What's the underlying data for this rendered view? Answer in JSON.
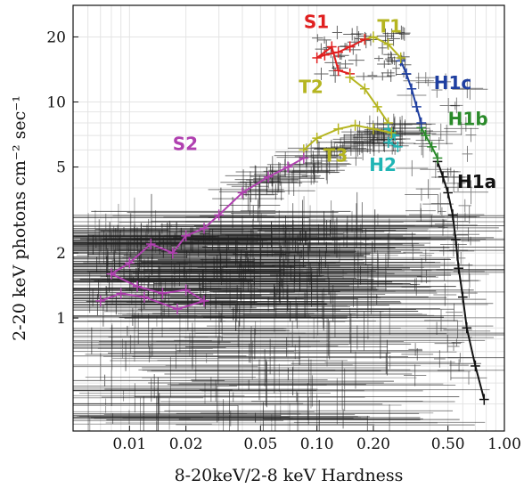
{
  "chart_data": {
    "type": "scatter",
    "xlabel": "8-20keV/2-8 keV Hardness",
    "ylabel": "2-20 keV photons cm⁻² sec⁻¹",
    "x_scale": "log",
    "y_scale": "log",
    "xlim": [
      0.005,
      1.0
    ],
    "ylim": [
      0.3,
      28
    ],
    "grid": true,
    "x_ticks": [
      {
        "value": 0.01,
        "label": "0.01"
      },
      {
        "value": 0.02,
        "label": "0.02"
      },
      {
        "value": 0.05,
        "label": "0.05"
      },
      {
        "value": 0.1,
        "label": "0.10"
      },
      {
        "value": 0.2,
        "label": "0.20"
      },
      {
        "value": 0.5,
        "label": "0.50"
      },
      {
        "value": 1.0,
        "label": "1.00"
      }
    ],
    "y_ticks": [
      {
        "value": 1,
        "label": "1"
      },
      {
        "value": 2,
        "label": "2"
      },
      {
        "value": 5,
        "label": "5"
      },
      {
        "value": 10,
        "label": "10"
      },
      {
        "value": 20,
        "label": "20"
      }
    ],
    "series": [
      {
        "name": "H1a",
        "color": "#111111",
        "points": [
          [
            0.78,
            0.42
          ],
          [
            0.7,
            0.6
          ],
          [
            0.63,
            0.9
          ],
          [
            0.6,
            1.25
          ],
          [
            0.57,
            1.7
          ],
          [
            0.55,
            2.3
          ],
          [
            0.53,
            3.0
          ],
          [
            0.5,
            3.8
          ],
          [
            0.47,
            4.5
          ],
          [
            0.44,
            5.3
          ]
        ],
        "label": "H1a",
        "label_at": [
          0.56,
          4.0
        ]
      },
      {
        "name": "H1b",
        "color": "#2a8a2a",
        "points": [
          [
            0.44,
            5.5
          ],
          [
            0.41,
            6.2
          ],
          [
            0.38,
            7.0
          ],
          [
            0.36,
            7.6
          ]
        ],
        "label": "H1b",
        "label_at": [
          0.5,
          7.8
        ]
      },
      {
        "name": "H1c",
        "color": "#1f3fa0",
        "points": [
          [
            0.36,
            8.0
          ],
          [
            0.34,
            9.5
          ],
          [
            0.32,
            11.5
          ],
          [
            0.3,
            13.5
          ],
          [
            0.28,
            15.5
          ]
        ],
        "label": "H1c",
        "label_at": [
          0.42,
          11.5
        ]
      },
      {
        "name": "T1",
        "color": "#b5b520",
        "points": [
          [
            0.28,
            16.0
          ],
          [
            0.24,
            18.5
          ],
          [
            0.2,
            20.0
          ],
          [
            0.18,
            19.5
          ]
        ],
        "label": "T1",
        "label_at": [
          0.21,
          21.0
        ]
      },
      {
        "name": "S1",
        "color": "#e02020",
        "points": [
          [
            0.18,
            19.5
          ],
          [
            0.15,
            18.0
          ],
          [
            0.13,
            17.0
          ],
          [
            0.11,
            16.5
          ],
          [
            0.1,
            16.0
          ],
          [
            0.12,
            18.0
          ],
          [
            0.13,
            14.0
          ],
          [
            0.15,
            13.5
          ]
        ],
        "label": "S1",
        "label_at": [
          0.085,
          22.0
        ]
      },
      {
        "name": "T2",
        "color": "#b5b520",
        "points": [
          [
            0.15,
            13.0
          ],
          [
            0.18,
            11.5
          ],
          [
            0.21,
            9.5
          ],
          [
            0.24,
            8.0
          ]
        ],
        "label": "T2",
        "label_at": [
          0.08,
          11.0
        ]
      },
      {
        "name": "H2",
        "color": "#20b5b5",
        "points": [
          [
            0.24,
            7.5
          ],
          [
            0.26,
            7.0
          ],
          [
            0.24,
            6.5
          ],
          [
            0.27,
            6.2
          ]
        ],
        "label": "H2",
        "label_at": [
          0.19,
          4.8
        ]
      },
      {
        "name": "T3",
        "color": "#b5b520",
        "points": [
          [
            0.25,
            7.2
          ],
          [
            0.2,
            7.5
          ],
          [
            0.16,
            7.8
          ],
          [
            0.13,
            7.5
          ],
          [
            0.1,
            6.8
          ],
          [
            0.085,
            6.0
          ]
        ],
        "label": "T3",
        "label_at": [
          0.108,
          5.3
        ]
      },
      {
        "name": "S2",
        "color": "#b040b0",
        "points": [
          [
            0.085,
            5.5
          ],
          [
            0.07,
            5.0
          ],
          [
            0.055,
            4.5
          ],
          [
            0.04,
            3.8
          ],
          [
            0.03,
            3.0
          ],
          [
            0.025,
            2.6
          ],
          [
            0.02,
            2.4
          ],
          [
            0.017,
            2.0
          ],
          [
            0.013,
            2.2
          ],
          [
            0.01,
            1.8
          ],
          [
            0.008,
            1.6
          ],
          [
            0.011,
            1.4
          ],
          [
            0.015,
            1.3
          ],
          [
            0.02,
            1.35
          ],
          [
            0.025,
            1.2
          ],
          [
            0.018,
            1.1
          ],
          [
            0.012,
            1.25
          ],
          [
            0.009,
            1.3
          ],
          [
            0.007,
            1.2
          ]
        ],
        "label": "S2",
        "label_at": [
          0.017,
          6.0
        ]
      }
    ],
    "background_cloud_color": "#222222"
  }
}
